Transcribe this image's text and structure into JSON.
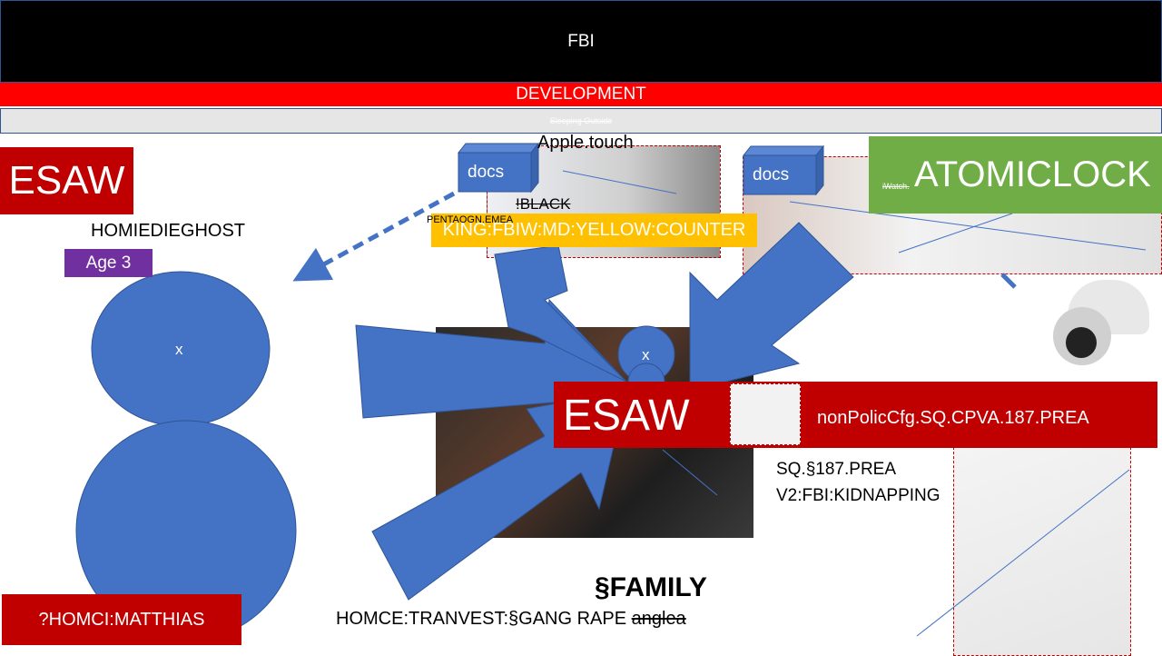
{
  "header": {
    "title": "FBI",
    "banner": "DEVELOPMENT",
    "subbanner": "Sleeping Outside"
  },
  "left": {
    "label": "ESAW",
    "name": "HOMIEDIEGHOST",
    "age": "Age 3",
    "circle": "x",
    "footer": "?HOMCI:MATTHIAS"
  },
  "center": {
    "docs": "docs",
    "apple": "Apple.touch",
    "black": "!BLACK",
    "pentagon": "PENTAOGN.EMEA",
    "king": "KING:FBIW:MD:YELLOW:COUNTER",
    "circle": "x",
    "family": "§FAMILY",
    "caption": "HOMCE:TRANVEST:§GANG RAPE",
    "caption_struck": "anglea"
  },
  "right": {
    "docs": "docs",
    "iwatch": "iWatch.",
    "atomic": "ATOMICLOCK",
    "esaw": "ESAW",
    "policy": "nonPolicCfg.SQ.CPVA.187.PREA",
    "sq": "SQ.§187.PREA",
    "v2": "V2:FBI:KIDNAPPING"
  }
}
